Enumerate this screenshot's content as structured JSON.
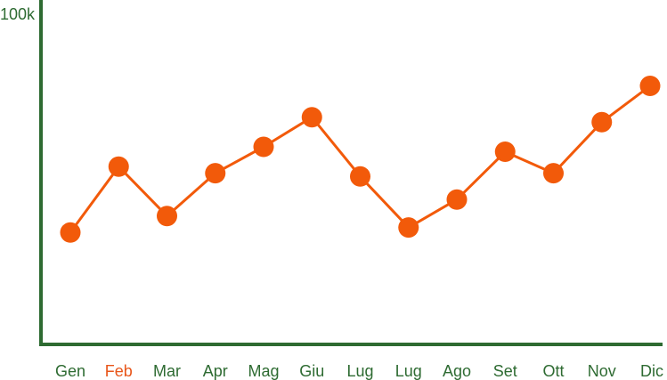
{
  "colors": {
    "axis": "#2e6b32",
    "label": "#2e6b32",
    "highlight_label": "#e8561a",
    "series": "#f25a0a"
  },
  "chart_data": {
    "type": "line",
    "title": "",
    "xlabel": "",
    "ylabel": "",
    "y_max_label": "100k",
    "ylim": [
      0,
      100000
    ],
    "grid": false,
    "legend": "none",
    "categories": [
      "Gen",
      "Feb",
      "Mar",
      "Apr",
      "Mag",
      "Giu",
      "Lug",
      "Lug",
      "Ago",
      "Set",
      "Ott",
      "Nov",
      "Dic"
    ],
    "highlighted_category_index": 1,
    "series": [
      {
        "values": [
          34000,
          54000,
          39000,
          52000,
          60000,
          69000,
          51000,
          35500,
          44000,
          58500,
          52000,
          67500,
          78500
        ]
      }
    ]
  }
}
